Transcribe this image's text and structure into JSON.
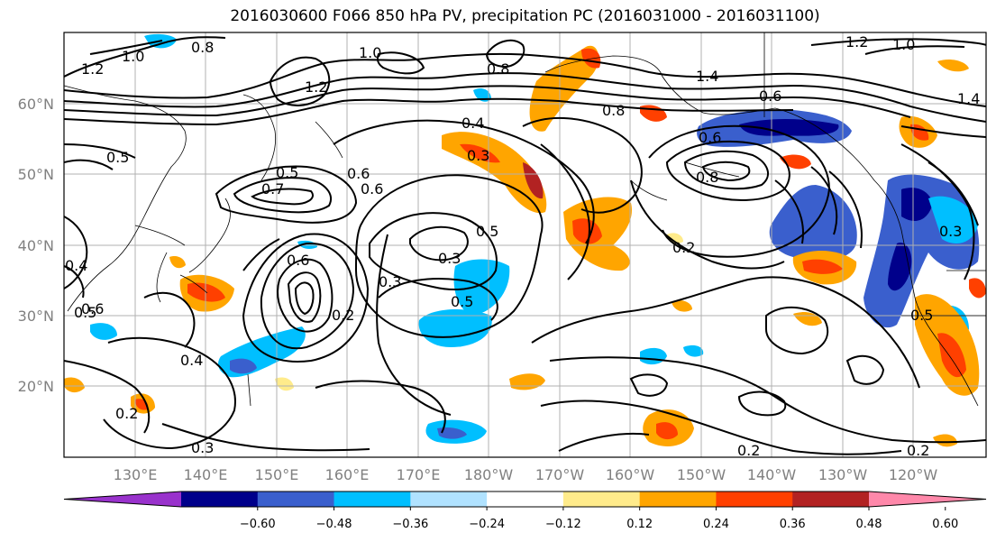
{
  "title": "2016030600 F066 850 hPa PV, precipitation PC (2016031000 - 2016031100)",
  "latitude_labels": [
    "60°N",
    "50°N",
    "40°N",
    "30°N",
    "20°N"
  ],
  "longitude_labels": [
    "130°E",
    "140°E",
    "150°E",
    "160°E",
    "170°E",
    "180°W",
    "170°W",
    "160°W",
    "150°W",
    "140°W",
    "130°W",
    "120°W"
  ],
  "colorbar": {
    "tick_labels": [
      "−0.60",
      "−0.48",
      "−0.36",
      "−0.24",
      "−0.12",
      "0.12",
      "0.24",
      "0.36",
      "0.48",
      "0.60"
    ],
    "colors": [
      "#9932cc",
      "#00008b",
      "#3a5fcd",
      "#00bfff",
      "#b0e2ff",
      "#ffffff",
      "#ffeb8b",
      "#ffa500",
      "#ff4000",
      "#b22222",
      "#ff88aa"
    ]
  },
  "contour_labels": [
    "1.0",
    "0.8",
    "1.2",
    "1.2",
    "1.0",
    "0.8",
    "1.4",
    "0.6",
    "1.2",
    "1.0",
    "1.4",
    "0.4",
    "0.3",
    "0.8",
    "0.6",
    "0.5",
    "0.5",
    "0.7",
    "0.6",
    "0.6",
    "0.8",
    "0.3",
    "0.5",
    "0.2",
    "0.3",
    "0.6",
    "0.5",
    "0.3",
    "0.5",
    "0.4",
    "0.2",
    "0.2",
    "0.3",
    "0.2",
    "0.2",
    "0.5",
    "0.4",
    "0.6"
  ]
}
